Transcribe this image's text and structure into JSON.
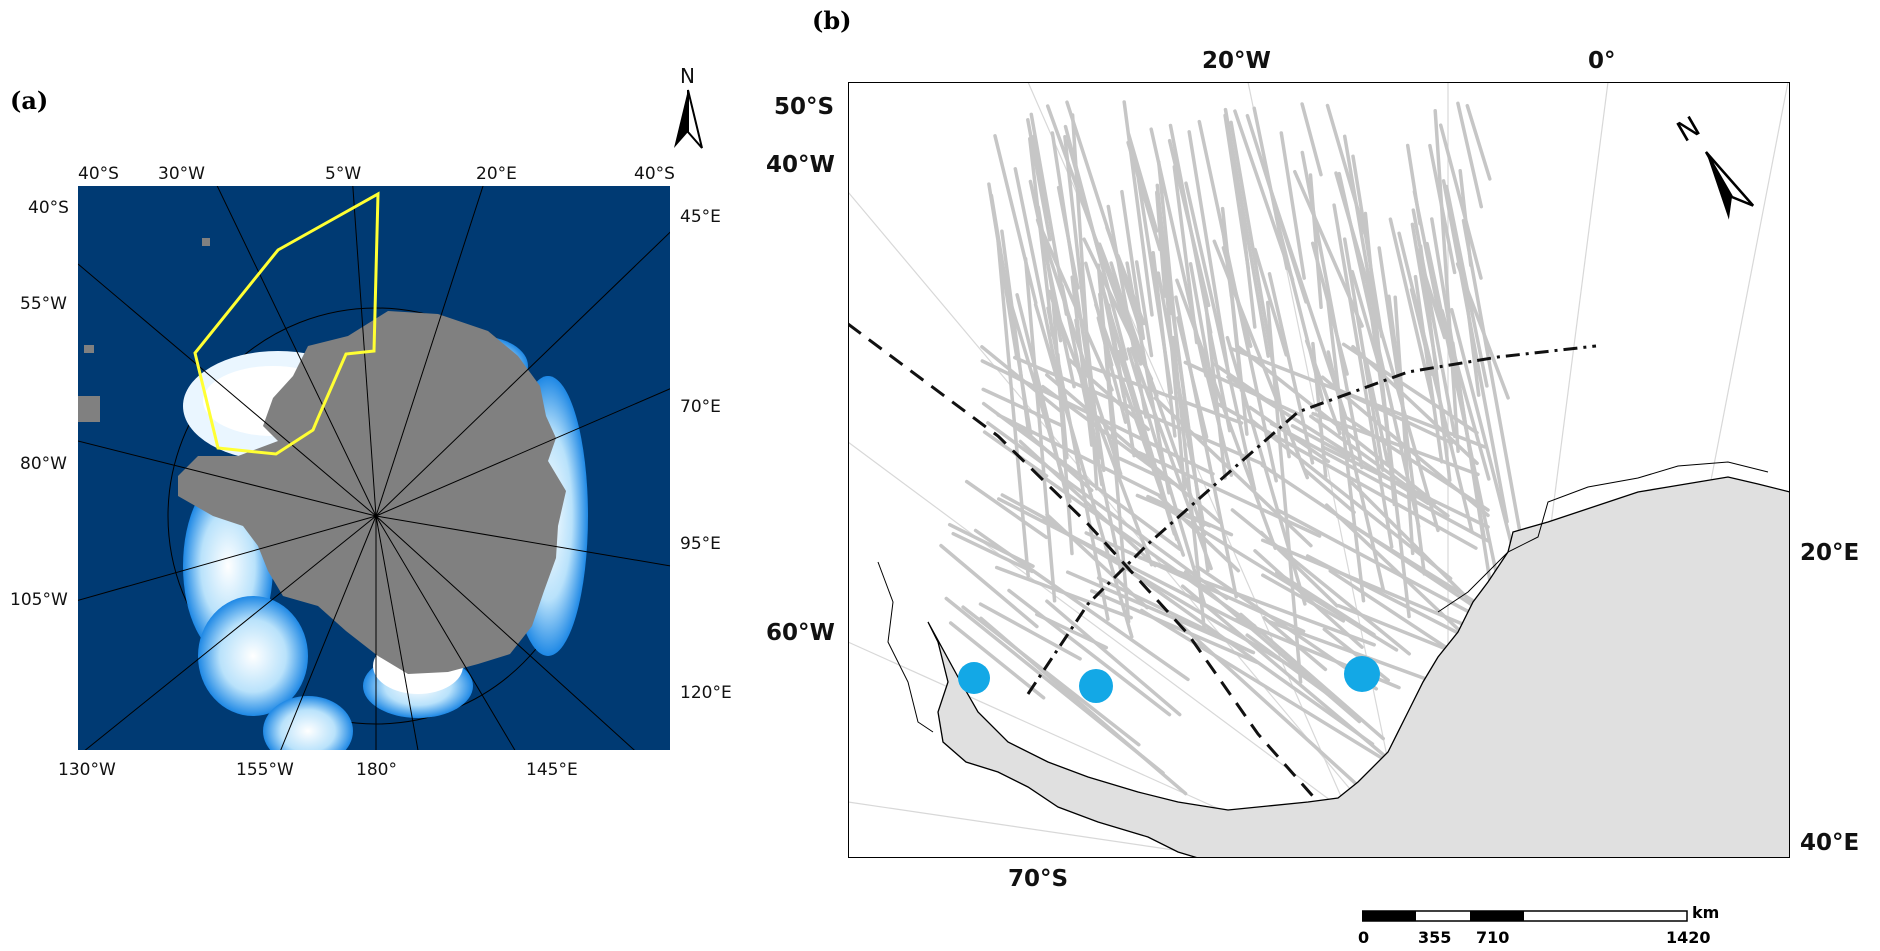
{
  "panel_a": {
    "label": "(a)",
    "north": "N",
    "labels": {
      "top": [
        "40°S",
        "30°W",
        "5°W",
        "20°E",
        "40°S"
      ],
      "left": [
        "40°S",
        "55°W",
        "80°W",
        "105°W"
      ],
      "right": [
        "45°E",
        "70°E",
        "95°E",
        "120°E"
      ],
      "bottom": [
        "130°W",
        "155°W",
        "180°",
        "145°E"
      ]
    },
    "colors": {
      "ocean": "#003a73",
      "land": "#808080",
      "ice_light": "#ffffff",
      "ice_mid": "#9fd3f7",
      "ice_edge": "#1e88e5",
      "study_area": "#ffff33"
    }
  },
  "panel_b": {
    "label": "(b)",
    "north": "N",
    "labels": {
      "top": [
        "20°W",
        "0°"
      ],
      "left": [
        "50°S",
        "40°W",
        "60°W"
      ],
      "right": [
        "20°E",
        "40°E"
      ],
      "bottom": [
        "70°S"
      ]
    },
    "colors": {
      "tracks": "#c6c6c6",
      "land": "#e0e0e0",
      "points": "#13a8e6"
    },
    "scale_bar": {
      "unit": "km",
      "ticks": [
        "0",
        "355",
        "710",
        "1420"
      ]
    }
  }
}
